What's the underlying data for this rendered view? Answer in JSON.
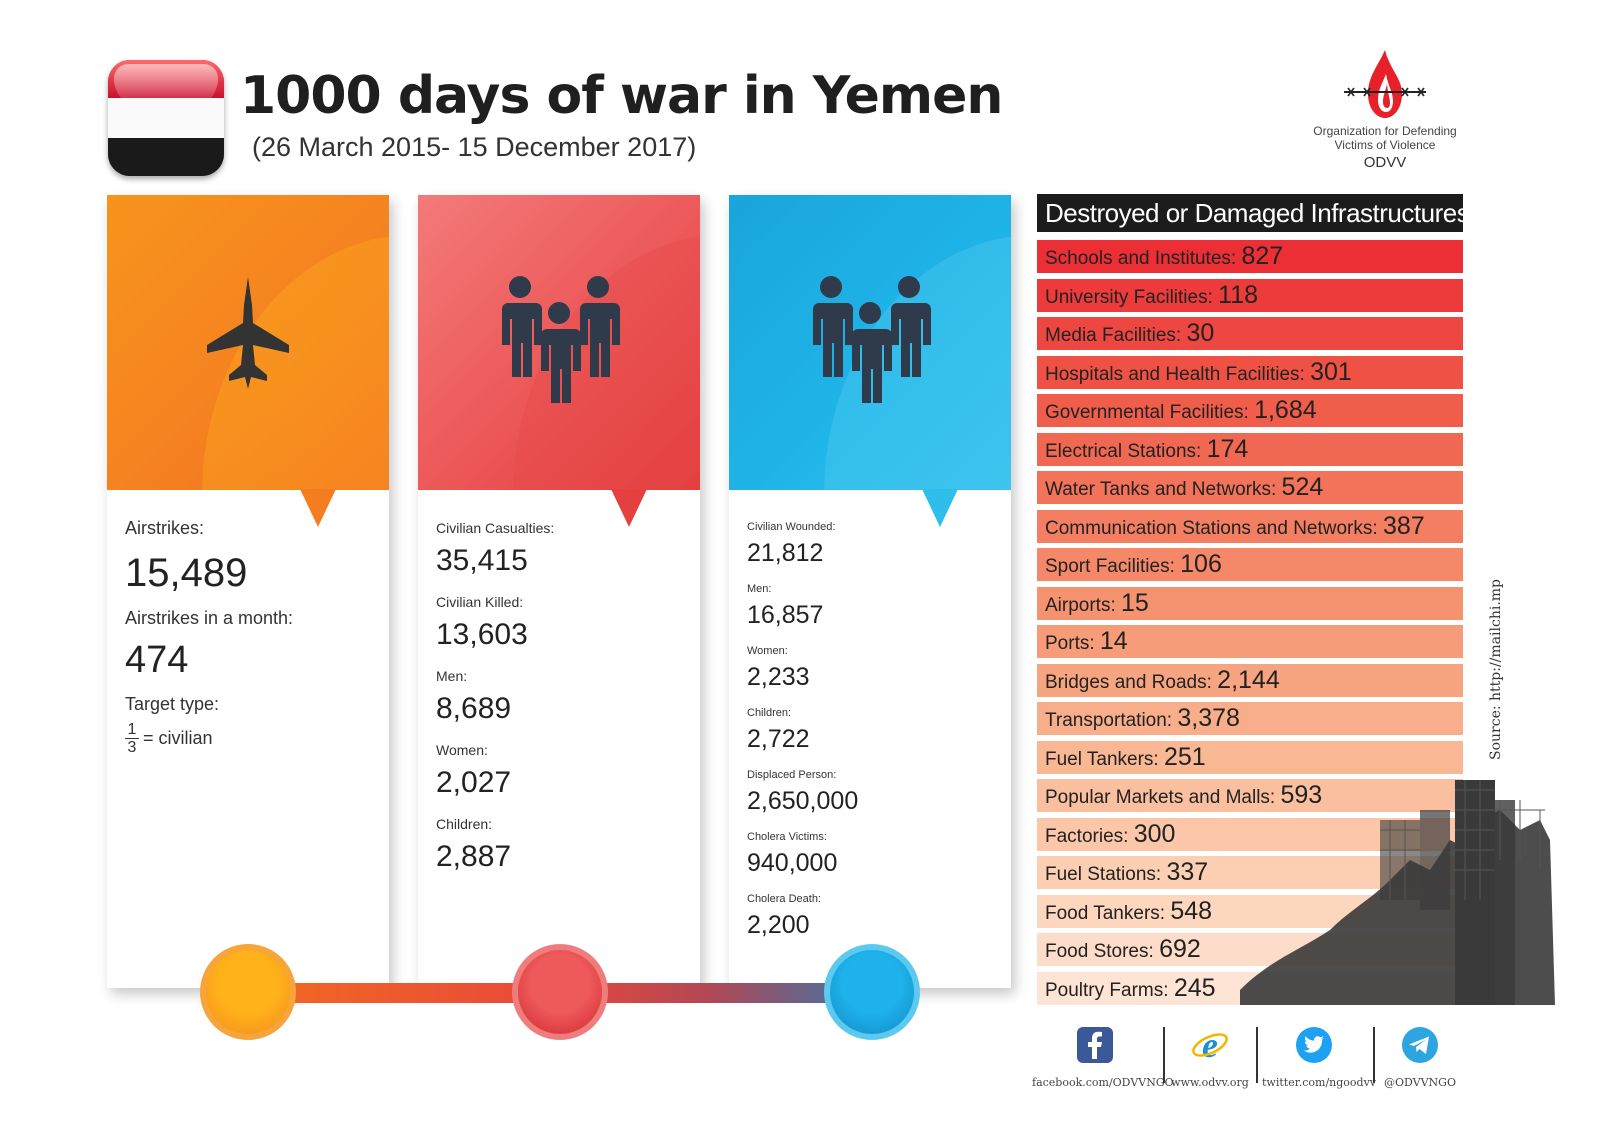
{
  "header": {
    "title": "1000 days of war in Yemen",
    "subtitle": "(26 March 2015- 15 December 2017)"
  },
  "logo": {
    "line1": "Organization for Defending",
    "line2": "Victims of Violence",
    "acronym": "ODVV",
    "icon": "flame-barbed-wire-icon",
    "color": "#e8202a"
  },
  "colors": {
    "orange": "#f58220",
    "red": "#e4403f",
    "blue": "#1fb4e8"
  },
  "airstrikes_card": {
    "icon": "fighter-jet-icon",
    "airstrikes_label": "Airstrikes:",
    "airstrikes_value": "15,489",
    "monthly_label": "Airstrikes in a month:",
    "monthly_value": "474",
    "target_label": "Target type:",
    "fraction_num": "1",
    "fraction_den": "3",
    "fraction_text": "= civilian"
  },
  "casualties_card": {
    "icon": "people-group-icon",
    "items": [
      {
        "label": "Civilian Casualties:",
        "value": "35,415"
      },
      {
        "label": "Civilian Killed:",
        "value": "13,603"
      },
      {
        "label": "Men:",
        "value": "8,689"
      },
      {
        "label": "Women:",
        "value": "2,027"
      },
      {
        "label": "Children:",
        "value": "2,887"
      }
    ]
  },
  "wounded_card": {
    "icon": "people-group-icon",
    "items": [
      {
        "label": "Civilian Wounded:",
        "value": "21,812"
      },
      {
        "label": "Men:",
        "value": "16,857"
      },
      {
        "label": "Women:",
        "value": "2,233"
      },
      {
        "label": "Children:",
        "value": "2,722"
      },
      {
        "label": "Displaced Person:",
        "value": "2,650,000"
      },
      {
        "label": "Cholera Victims:",
        "value": "940,000"
      },
      {
        "label": "Cholera Death:",
        "value": "2,200"
      }
    ]
  },
  "infrastructure": {
    "heading": "Destroyed or Damaged Infrastructures:",
    "rows": [
      {
        "label": "Schools and Institutes:",
        "value": "827",
        "color": "#ec2e35"
      },
      {
        "label": "University Facilities:",
        "value": "118",
        "color": "#ed3a3a"
      },
      {
        "label": "Media Facilities:",
        "value": "30",
        "color": "#ee4640"
      },
      {
        "label": "Hospitals and Health Facilities:",
        "value": "301",
        "color": "#ef5245"
      },
      {
        "label": "Governmental Facilities:",
        "value": "1,684",
        "color": "#f05d4b"
      },
      {
        "label": "Electrical Stations:",
        "value": "174",
        "color": "#f16852"
      },
      {
        "label": "Water Tanks and Networks:",
        "value": "524",
        "color": "#f27359"
      },
      {
        "label": "Communication Stations and Networks:",
        "value": "387",
        "color": "#f37e61"
      },
      {
        "label": "Sport Facilities:",
        "value": "106",
        "color": "#f48868"
      },
      {
        "label": "Airports:",
        "value": "15",
        "color": "#f59270"
      },
      {
        "label": "Ports:",
        "value": "14",
        "color": "#f69c78"
      },
      {
        "label": "Bridges and Roads:",
        "value": "2,144",
        "color": "#f7a581"
      },
      {
        "label": "Transportation:",
        "value": "3,378",
        "color": "#f8ae8a"
      },
      {
        "label": "Fuel Tankers:",
        "value": "251",
        "color": "#f9b794"
      },
      {
        "label": "Popular Markets and Malls:",
        "value": "593",
        "color": "#fabf9e"
      },
      {
        "label": "Factories:",
        "value": "300",
        "color": "#fbc7a8"
      },
      {
        "label": "Fuel Stations:",
        "value": "337",
        "color": "#fccfb3"
      },
      {
        "label": "Food Tankers:",
        "value": "548",
        "color": "#fdd6be"
      },
      {
        "label": "Food Stores:",
        "value": "692",
        "color": "#fdddc9"
      },
      {
        "label": "Poultry Farms:",
        "value": "245",
        "color": "#fee4d4"
      }
    ]
  },
  "source": "Source: http://mailchi.mp",
  "social": [
    {
      "icon": "facebook-icon",
      "text": "facebook.com/ODVVNGO",
      "color": "#3b5998"
    },
    {
      "icon": "internet-explorer-icon",
      "text": "www.odvv.org",
      "color": "#1a8fd8"
    },
    {
      "icon": "twitter-icon",
      "text": "twitter.com/ngoodvv",
      "color": "#1da1f2"
    },
    {
      "icon": "telegram-icon",
      "text": "@ODVVNGO",
      "color": "#2ca5e0"
    }
  ]
}
